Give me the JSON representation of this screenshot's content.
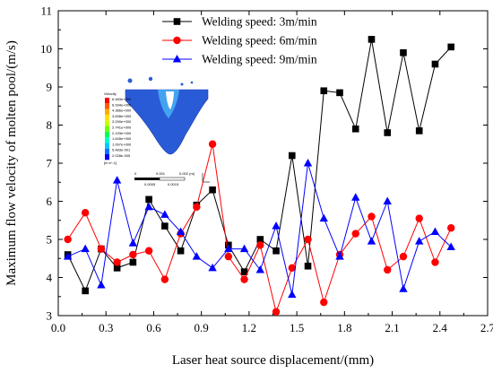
{
  "chart_data": {
    "type": "line",
    "title": "",
    "xlabel": "Laser heat source displacement/(mm)",
    "ylabel": "Maximum flow velocity of molten pool/(m/s)",
    "xlim": [
      0.0,
      2.7
    ],
    "ylim": [
      3,
      11
    ],
    "xticks": [
      "0.0",
      "0.3",
      "0.6",
      "0.9",
      "1.2",
      "1.5",
      "1.8",
      "2.1",
      "2.4",
      "2.7"
    ],
    "yticks": [
      "3",
      "4",
      "5",
      "6",
      "7",
      "8",
      "9",
      "10",
      "11"
    ],
    "legend_position": "top-center",
    "x": [
      0.06,
      0.17,
      0.27,
      0.37,
      0.47,
      0.57,
      0.67,
      0.77,
      0.87,
      0.97,
      1.07,
      1.17,
      1.27,
      1.37,
      1.47,
      1.57,
      1.67,
      1.77,
      1.87,
      1.97,
      2.07,
      2.17,
      2.27,
      2.37,
      2.47
    ],
    "series": [
      {
        "name": "Welding speed: 3m/min",
        "color": "#000000",
        "marker": "square",
        "values": [
          4.6,
          3.65,
          4.75,
          4.25,
          4.4,
          6.05,
          5.35,
          4.7,
          5.9,
          6.3,
          4.85,
          4.15,
          5.0,
          4.7,
          7.2,
          4.3,
          8.9,
          8.85,
          7.9,
          10.25,
          7.8,
          9.9,
          7.85,
          9.6,
          10.05
        ]
      },
      {
        "name": "Welding speed: 6m/min",
        "color": "#ff0000",
        "marker": "circle",
        "values": [
          5.0,
          5.7,
          4.75,
          4.4,
          4.6,
          4.7,
          3.95,
          5.15,
          5.85,
          7.5,
          4.55,
          3.95,
          4.85,
          3.1,
          4.25,
          5.0,
          3.35,
          4.6,
          5.15,
          5.6,
          4.2,
          4.55,
          5.55,
          4.4,
          5.3
        ]
      },
      {
        "name": "Welding speed: 9m/min",
        "color": "#0000ff",
        "marker": "triangle",
        "values": [
          4.55,
          4.75,
          3.8,
          6.55,
          4.9,
          5.85,
          5.65,
          5.2,
          4.55,
          4.25,
          4.75,
          4.75,
          4.2,
          5.35,
          3.55,
          7.0,
          5.55,
          4.55,
          6.1,
          4.95,
          6.0,
          3.7,
          4.95,
          5.2,
          4.8
        ]
      }
    ]
  },
  "inset": {
    "legend_title": "Velocity",
    "legend_values": [
      "6.483e+000",
      "6.934e+000",
      "4.386e+000",
      "3.838e+000",
      "3.290e+000",
      "2.741e+000",
      "2.193e+000",
      "1.645e+000",
      "1.097e+000",
      "5.483e-001",
      "2.028e-005"
    ],
    "legend_unit": "[m s^-1]",
    "legend_colors": [
      "#ff0000",
      "#ff5a00",
      "#ffaa00",
      "#ffe000",
      "#c8ff00",
      "#6eff00",
      "#00ff5a",
      "#00ffc8",
      "#00c8ff",
      "#0078ff",
      "#0000ff"
    ],
    "scale_labels": [
      "0",
      "0.001",
      "0.002 (m)",
      "0.0005",
      "0.0015"
    ]
  }
}
